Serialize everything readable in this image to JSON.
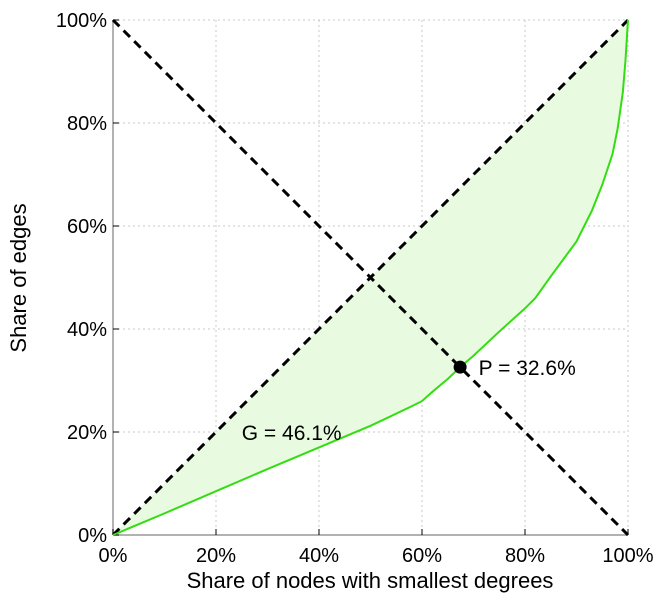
{
  "chart_data": {
    "type": "area",
    "title": "",
    "xlabel": "Share of nodes with smallest degrees",
    "ylabel": "Share of edges",
    "xlim": [
      0,
      100
    ],
    "ylim": [
      0,
      100
    ],
    "x_ticks": [
      0,
      20,
      40,
      60,
      80,
      100
    ],
    "y_ticks": [
      0,
      20,
      40,
      60,
      80,
      100
    ],
    "x_tick_labels": [
      "0%",
      "20%",
      "40%",
      "60%",
      "80%",
      "100%"
    ],
    "y_tick_labels": [
      "0%",
      "20%",
      "40%",
      "60%",
      "80%",
      "100%"
    ],
    "grid": true,
    "series": [
      {
        "values_x": [
          0,
          10,
          20,
          30,
          40,
          50,
          58,
          60,
          62,
          65,
          67.4,
          70,
          75,
          80,
          82,
          85,
          90,
          93,
          95,
          97,
          98,
          99,
          99.5,
          100
        ],
        "values_y": [
          0,
          4.2,
          8.5,
          12.8,
          17,
          21.2,
          25,
          26,
          27.8,
          30.3,
          32.6,
          34.8,
          39.5,
          44,
          46,
          50.2,
          57,
          63,
          68,
          74,
          79,
          86,
          92,
          100
        ],
        "color": "#33dd11",
        "fill": "#e8fbe0"
      }
    ],
    "reference_lines": [
      {
        "from": [
          0,
          0
        ],
        "to": [
          100,
          100
        ],
        "style": "dashed",
        "color": "#000000"
      },
      {
        "from": [
          0,
          100
        ],
        "to": [
          100,
          0
        ],
        "style": "dashed",
        "color": "#000000"
      }
    ],
    "marker": {
      "x": 67.4,
      "y": 32.6,
      "color": "#000000"
    },
    "annotations": [
      {
        "text": "G = 46.1%",
        "x": 25,
        "y": 20
      },
      {
        "text": "P = 32.6%",
        "x": 71,
        "y": 32.6
      }
    ]
  }
}
